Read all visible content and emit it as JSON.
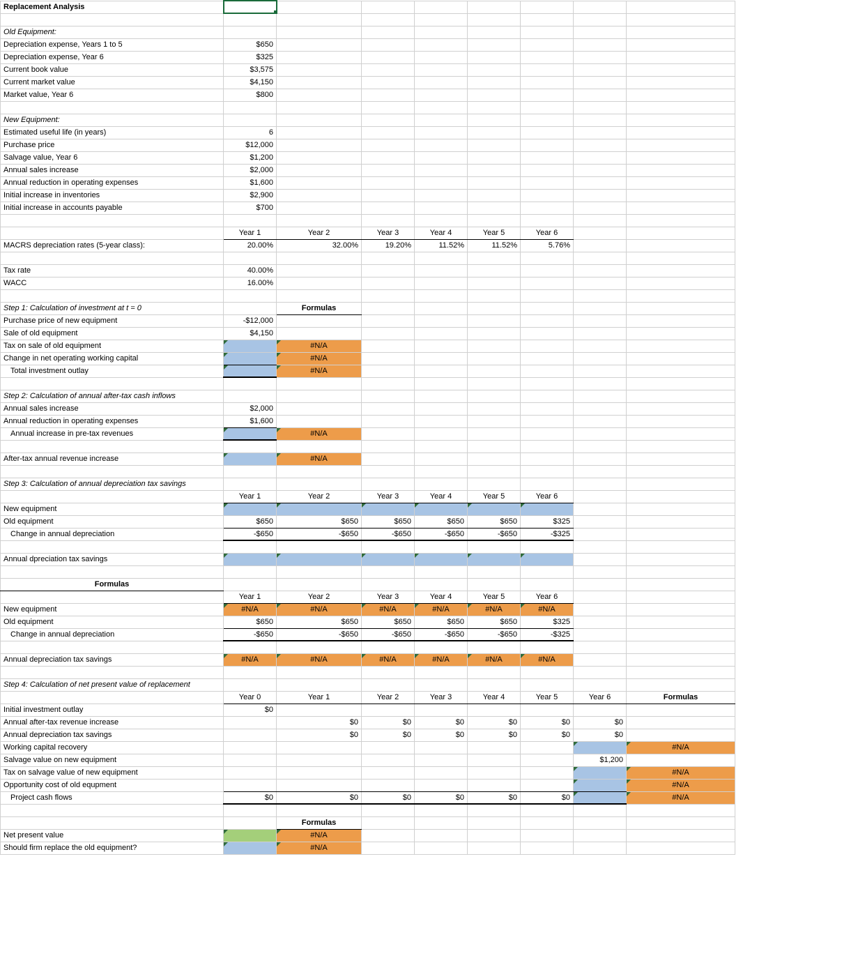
{
  "colors": {
    "blue": "#a8c4e4",
    "orange": "#ed9c4a",
    "green": "#a4cf7a",
    "na_text": "#000000"
  },
  "title": "Replacement Analysis",
  "labels": {
    "old_eq": "Old Equipment:",
    "dep_1_5": "Depreciation expense, Years 1 to 5",
    "dep_6": "Depreciation expense, Year 6",
    "cbv": "Current book value",
    "cmv": "Current market value",
    "mv6": "Market value, Year 6",
    "new_eq": "New Equipment:",
    "eul": "Estimated useful life (in years)",
    "pp": "Purchase price",
    "sv6": "Salvage value, Year 6",
    "asi": "Annual sales increase",
    "aroe": "Annual reduction in operating expenses",
    "iii": "Initial increase in inventories",
    "iiap": "Initial increase in accounts payable",
    "macrs": "MACRS depreciation rates (5-year class):",
    "tax": "Tax rate",
    "wacc": "WACC",
    "step1": "Step 1: Calculation of investment at t = 0",
    "pp_new": "Purchase price of new equipment",
    "sale_old": "Sale of old equipment",
    "tax_sale": "Tax on sale of old equipment",
    "chg_nowc": "Change in net operating working capital",
    "tot_inv": "Total investment outlay",
    "step2": "Step 2: Calculation of annual after-tax cash inflows",
    "ann_inc_pre": "Annual increase in pre-tax revenues",
    "after_tax_rev": "After-tax annual revenue increase",
    "step3": "Step 3: Calculation of annual depreciation tax savings",
    "new_eq_row": "New equipment",
    "old_eq_row": "Old equipment",
    "chg_dep": "Change in annual depreciation",
    "ann_dep_tax": "Annual dpreciation tax savings",
    "ann_dep_tax2": "Annual depreciation tax savings",
    "formulas": "Formulas",
    "step4": "Step 4:  Calculation of net present value of replacement",
    "iio": "Initial investment outlay",
    "aatri": "Annual after-tax revenue increase",
    "adts": "Annual depreciation tax savings",
    "wcr": "Working capital recovery",
    "svne": "Salvage value on new equipment",
    "tsvne": "Tax on salvage value of new equipment",
    "oco": "Opportunity cost of old equpment",
    "pcf": "Project cash flows",
    "npv": "Net present value",
    "replace_q": "Should firm replace the old equipment?"
  },
  "years": {
    "y0": "Year 0",
    "y1": "Year 1",
    "y2": "Year 2",
    "y3": "Year 3",
    "y4": "Year 4",
    "y5": "Year 5",
    "y6": "Year 6"
  },
  "vals": {
    "dep_1_5": "$650",
    "dep_6": "$325",
    "cbv": "$3,575",
    "cmv": "$4,150",
    "mv6": "$800",
    "eul": "6",
    "pp": "$12,000",
    "sv6": "$1,200",
    "asi": "$2,000",
    "aroe": "$1,600",
    "iii": "$2,900",
    "iiap": "$700",
    "macrs": [
      "20.00%",
      "32.00%",
      "19.20%",
      "11.52%",
      "11.52%",
      "5.76%"
    ],
    "tax": "40.00%",
    "wacc": "16.00%",
    "pp_new": "-$12,000",
    "sale_old": "$4,150",
    "na": "#N/A",
    "s2_asi": "$2,000",
    "s2_aroe": "$1,600",
    "old_dep": [
      "$650",
      "$650",
      "$650",
      "$650",
      "$650",
      "$325"
    ],
    "chg_dep": [
      "-$650",
      "-$650",
      "-$650",
      "-$650",
      "-$650",
      "-$325"
    ],
    "zero": "$0",
    "svne": "$1,200"
  }
}
